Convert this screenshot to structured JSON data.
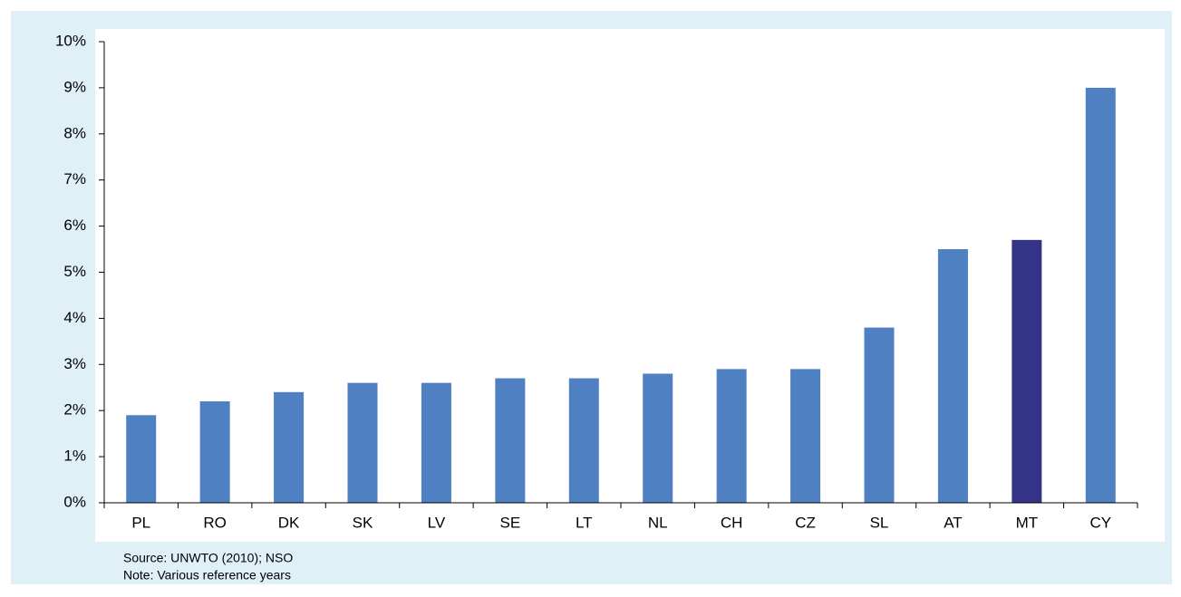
{
  "chart_data": {
    "type": "bar",
    "categories": [
      "PL",
      "RO",
      "DK",
      "SK",
      "LV",
      "SE",
      "LT",
      "NL",
      "CH",
      "CZ",
      "SL",
      "AT",
      "MT",
      "CY"
    ],
    "values": [
      1.9,
      2.2,
      2.4,
      2.6,
      2.6,
      2.7,
      2.7,
      2.8,
      2.9,
      2.9,
      3.8,
      5.5,
      5.7,
      9.0
    ],
    "colors": [
      "#4f81c2",
      "#4f81c2",
      "#4f81c2",
      "#4f81c2",
      "#4f81c2",
      "#4f81c2",
      "#4f81c2",
      "#4f81c2",
      "#4f81c2",
      "#4f81c2",
      "#4f81c2",
      "#4f81c2",
      "#333388",
      "#4f81c2"
    ],
    "ylim": [
      0,
      10
    ],
    "yticks": [
      {
        "value": 0,
        "label": "0%"
      },
      {
        "value": 1,
        "label": "1%"
      },
      {
        "value": 2,
        "label": "2%"
      },
      {
        "value": 3,
        "label": "3%"
      },
      {
        "value": 4,
        "label": "4%"
      },
      {
        "value": 5,
        "label": "5%"
      },
      {
        "value": 6,
        "label": "6%"
      },
      {
        "value": 7,
        "label": "7%"
      },
      {
        "value": 8,
        "label": "8%"
      },
      {
        "value": 9,
        "label": "9%"
      },
      {
        "value": 10,
        "label": "10%"
      }
    ],
    "grid": false,
    "source": "Source:  UNWTO (2010); NSO",
    "note": "Note: Various reference years"
  }
}
